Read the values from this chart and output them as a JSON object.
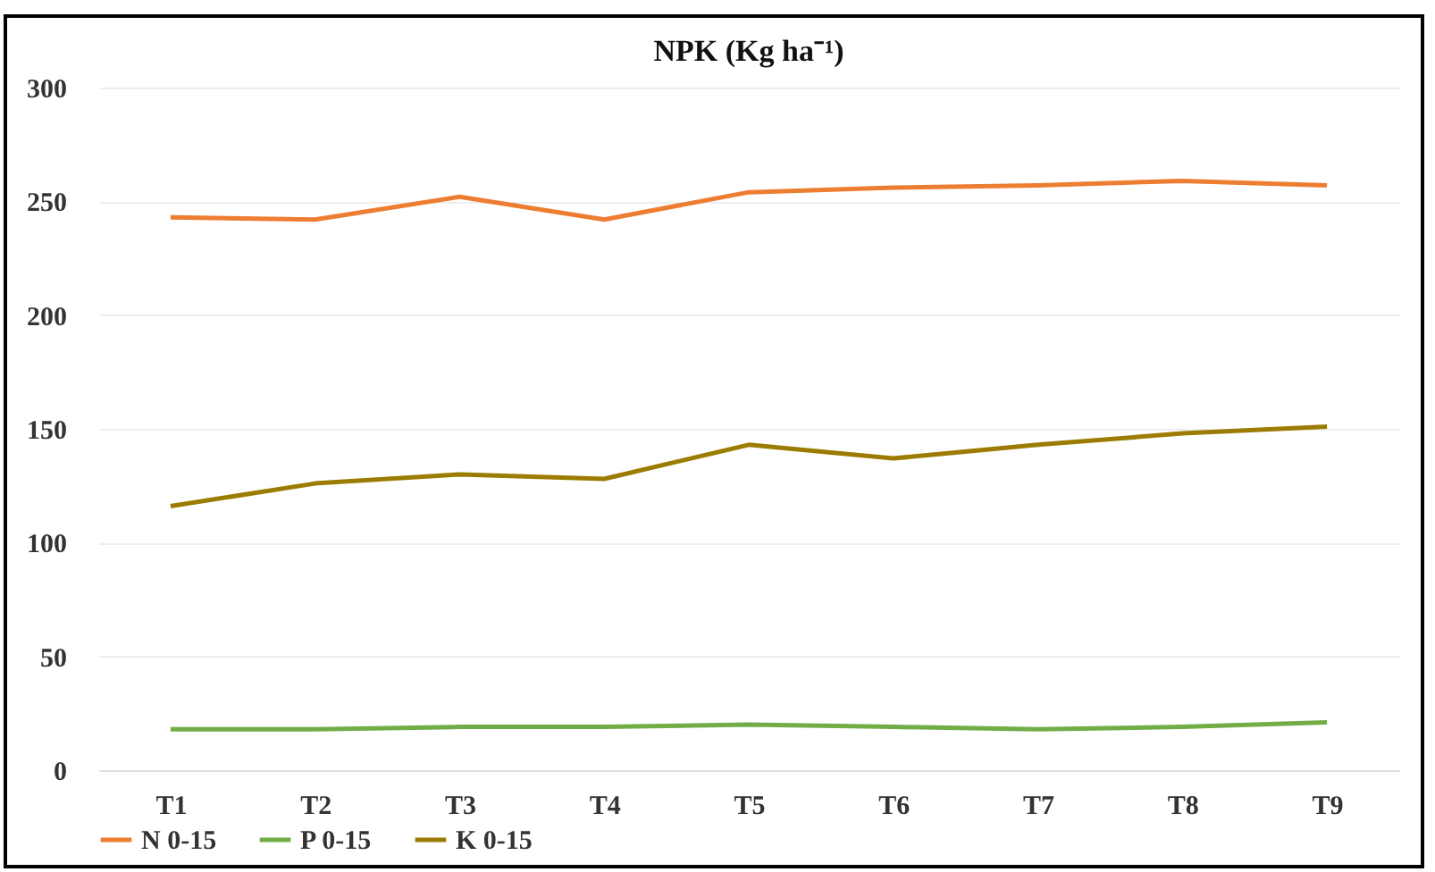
{
  "chart_data": {
    "type": "line",
    "title": "NPK (Kg ha⁻¹)",
    "categories": [
      "T1",
      "T2",
      "T3",
      "T4",
      "T5",
      "T6",
      "T7",
      "T8",
      "T9"
    ],
    "series": [
      {
        "name": "N 0-15",
        "color": "#ed7d31",
        "values": [
          243,
          242,
          252,
          242,
          254,
          256,
          257,
          259,
          257
        ]
      },
      {
        "name": "P 0-15",
        "color": "#70ad47",
        "values": [
          18,
          18,
          19,
          19,
          20,
          19,
          18,
          19,
          21
        ]
      },
      {
        "name": "K 0-15",
        "color": "#9c7c00",
        "values": [
          116,
          126,
          130,
          128,
          143,
          137,
          143,
          148,
          151
        ]
      }
    ],
    "ylim": [
      0,
      300
    ],
    "yticks": [
      0,
      50,
      100,
      150,
      200,
      250,
      300
    ],
    "grid": "y",
    "legend": "bottom",
    "marker": "none",
    "line_style": "solid"
  }
}
